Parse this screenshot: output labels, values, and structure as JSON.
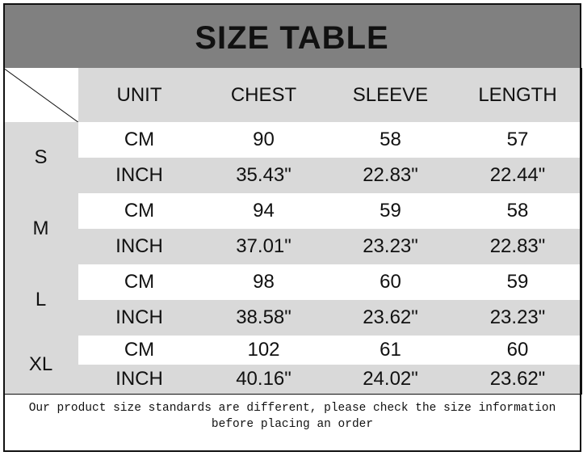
{
  "title": "SIZE TABLE",
  "headers": [
    "UNIT",
    "CHEST",
    "SLEEVE",
    "LENGTH"
  ],
  "sizes": [
    {
      "size": "S",
      "rows": [
        [
          "CM",
          "90",
          "58",
          "57"
        ],
        [
          "INCH",
          "35.43\"",
          "22.83\"",
          "22.44\""
        ]
      ]
    },
    {
      "size": "M",
      "rows": [
        [
          "CM",
          "94",
          "59",
          "58"
        ],
        [
          "INCH",
          "37.01\"",
          "23.23\"",
          "22.83\""
        ]
      ]
    },
    {
      "size": "L",
      "rows": [
        [
          "CM",
          "98",
          "60",
          "59"
        ],
        [
          "INCH",
          "38.58\"",
          "23.62\"",
          "23.23\""
        ]
      ]
    },
    {
      "size": "XL",
      "rows": [
        [
          "CM",
          "102",
          "61",
          "60"
        ],
        [
          "INCH",
          "40.16\"",
          "24.02\"",
          "23.62\""
        ]
      ]
    }
  ],
  "note": "Our product size standards are different, please check the size information before placing an order",
  "colors": {
    "title_bg": "#808080",
    "header_bg": "#d9d9d9"
  }
}
